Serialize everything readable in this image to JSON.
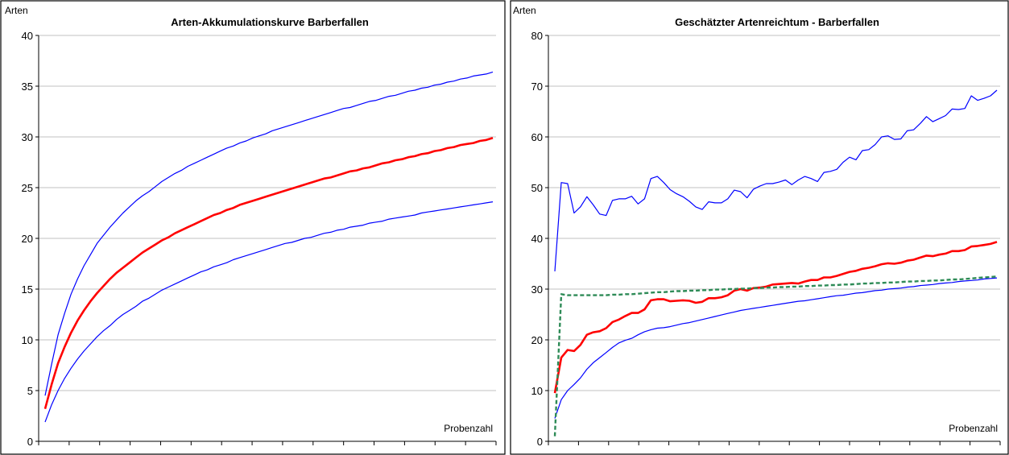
{
  "chart_data": [
    {
      "type": "line",
      "title": "Arten-Akkumulationskurve Barberfallen",
      "ylabel": "Arten",
      "xlabel": "Probenzahl",
      "ylim": [
        0,
        40
      ],
      "yticks": [
        0,
        5,
        10,
        15,
        20,
        25,
        30,
        35,
        40
      ],
      "x_count": 70,
      "grid": true,
      "series": [
        {
          "color": "#0000ff",
          "style": "solid",
          "width": 1.2,
          "values": [
            4.5,
            7.6,
            10.5,
            12.6,
            14.5,
            16.0,
            17.3,
            18.4,
            19.5,
            20.3,
            21.1,
            21.8,
            22.5,
            23.1,
            23.7,
            24.2,
            24.6,
            25.1,
            25.6,
            26.0,
            26.4,
            26.7,
            27.1,
            27.4,
            27.7,
            28.0,
            28.3,
            28.6,
            28.9,
            29.1,
            29.4,
            29.6,
            29.9,
            30.1,
            30.3,
            30.6,
            30.8,
            31.0,
            31.2,
            31.4,
            31.6,
            31.8,
            32.0,
            32.2,
            32.4,
            32.6,
            32.8,
            32.9,
            33.1,
            33.3,
            33.5,
            33.6,
            33.8,
            34.0,
            34.1,
            34.3,
            34.5,
            34.6,
            34.8,
            34.9,
            35.1,
            35.2,
            35.4,
            35.5,
            35.7,
            35.8,
            36.0,
            36.1,
            36.2,
            36.4
          ]
        },
        {
          "color": "#ff0000",
          "style": "solid",
          "width": 2.6,
          "values": [
            3.2,
            5.6,
            7.7,
            9.3,
            10.7,
            11.9,
            12.9,
            13.8,
            14.6,
            15.3,
            16.0,
            16.6,
            17.1,
            17.6,
            18.1,
            18.6,
            19.0,
            19.4,
            19.8,
            20.1,
            20.5,
            20.8,
            21.1,
            21.4,
            21.7,
            22.0,
            22.3,
            22.5,
            22.8,
            23.0,
            23.3,
            23.5,
            23.7,
            23.9,
            24.1,
            24.3,
            24.5,
            24.7,
            24.9,
            25.1,
            25.3,
            25.5,
            25.7,
            25.9,
            26.0,
            26.2,
            26.4,
            26.6,
            26.7,
            26.9,
            27.0,
            27.2,
            27.4,
            27.5,
            27.7,
            27.8,
            28.0,
            28.1,
            28.3,
            28.4,
            28.6,
            28.7,
            28.9,
            29.0,
            29.2,
            29.3,
            29.4,
            29.6,
            29.7,
            29.9
          ]
        },
        {
          "color": "#0000ff",
          "style": "solid",
          "width": 1.2,
          "values": [
            1.9,
            3.6,
            5.0,
            6.2,
            7.2,
            8.1,
            8.9,
            9.6,
            10.3,
            10.9,
            11.4,
            12.0,
            12.5,
            12.9,
            13.3,
            13.8,
            14.1,
            14.5,
            14.9,
            15.2,
            15.5,
            15.8,
            16.1,
            16.4,
            16.7,
            16.9,
            17.2,
            17.4,
            17.6,
            17.9,
            18.1,
            18.3,
            18.5,
            18.7,
            18.9,
            19.1,
            19.3,
            19.5,
            19.6,
            19.8,
            20.0,
            20.1,
            20.3,
            20.5,
            20.6,
            20.8,
            20.9,
            21.1,
            21.2,
            21.3,
            21.5,
            21.6,
            21.7,
            21.9,
            22.0,
            22.1,
            22.2,
            22.3,
            22.5,
            22.6,
            22.7,
            22.8,
            22.9,
            23.0,
            23.1,
            23.2,
            23.3,
            23.4,
            23.5,
            23.6
          ]
        }
      ]
    },
    {
      "type": "line",
      "title": "Geschätzter Artenreichtum - Barberfallen",
      "ylabel": "Arten",
      "xlabel": "Probenzahl",
      "ylim": [
        0,
        80
      ],
      "yticks": [
        0,
        10,
        20,
        30,
        40,
        50,
        60,
        70,
        80
      ],
      "x_count": 70,
      "grid": true,
      "series": [
        {
          "color": "#0000ff",
          "style": "solid",
          "width": 1.2,
          "values": [
            33.5,
            51.0,
            50.8,
            45.0,
            46.2,
            48.2,
            46.6,
            44.8,
            44.5,
            47.5,
            47.8,
            47.8,
            48.3,
            46.8,
            47.8,
            51.8,
            52.2,
            51.0,
            49.6,
            48.8,
            48.2,
            47.3,
            46.2,
            45.7,
            47.2,
            47.0,
            47.0,
            47.8,
            49.5,
            49.2,
            48.0,
            49.7,
            50.3,
            50.8,
            50.8,
            51.1,
            51.5,
            50.6,
            51.5,
            52.2,
            51.8,
            51.2,
            53.0,
            53.2,
            53.6,
            55.0,
            56.0,
            55.5,
            57.3,
            57.5,
            58.5,
            60.0,
            60.2,
            59.5,
            59.6,
            61.2,
            61.4,
            62.6,
            64.0,
            63.0,
            63.6,
            64.2,
            65.5,
            65.4,
            65.6,
            68.1,
            67.2,
            67.6,
            68.1,
            69.2
          ]
        },
        {
          "color": "#ff0000",
          "style": "solid",
          "width": 2.6,
          "values": [
            9.5,
            16.5,
            18.0,
            17.8,
            19.0,
            21.0,
            21.5,
            21.7,
            22.3,
            23.5,
            24.0,
            24.7,
            25.3,
            25.3,
            26.0,
            27.8,
            28.0,
            28.0,
            27.6,
            27.7,
            27.8,
            27.7,
            27.3,
            27.5,
            28.2,
            28.2,
            28.4,
            28.8,
            29.7,
            30.0,
            29.7,
            30.2,
            30.3,
            30.5,
            30.9,
            31.0,
            31.1,
            31.2,
            31.1,
            31.5,
            31.8,
            31.8,
            32.3,
            32.3,
            32.6,
            33.0,
            33.4,
            33.6,
            34.0,
            34.2,
            34.5,
            34.9,
            35.1,
            35.0,
            35.2,
            35.6,
            35.8,
            36.2,
            36.6,
            36.5,
            36.8,
            37.0,
            37.5,
            37.5,
            37.7,
            38.4,
            38.5,
            38.7,
            38.9,
            39.3
          ]
        },
        {
          "color": "#0000ff",
          "style": "solid",
          "width": 1.2,
          "values": [
            4.5,
            8.2,
            10.0,
            11.2,
            12.5,
            14.2,
            15.5,
            16.5,
            17.5,
            18.5,
            19.4,
            19.9,
            20.3,
            21.0,
            21.6,
            22.0,
            22.3,
            22.4,
            22.6,
            22.9,
            23.2,
            23.4,
            23.7,
            24.0,
            24.3,
            24.6,
            24.9,
            25.2,
            25.5,
            25.8,
            26.0,
            26.2,
            26.4,
            26.6,
            26.8,
            27.0,
            27.2,
            27.4,
            27.6,
            27.7,
            27.9,
            28.1,
            28.3,
            28.5,
            28.7,
            28.8,
            29.0,
            29.2,
            29.3,
            29.5,
            29.7,
            29.8,
            30.0,
            30.1,
            30.2,
            30.4,
            30.5,
            30.7,
            30.8,
            30.9,
            31.1,
            31.2,
            31.3,
            31.5,
            31.6,
            31.7,
            31.8,
            32.0,
            32.1,
            32.2
          ]
        },
        {
          "color": "#2e8b57",
          "style": "dashed",
          "width": 2.4,
          "values": [
            1.0,
            29.0,
            28.8,
            28.8,
            28.8,
            28.8,
            28.8,
            28.8,
            28.8,
            28.9,
            28.9,
            29.0,
            29.0,
            29.1,
            29.2,
            29.3,
            29.4,
            29.4,
            29.5,
            29.6,
            29.6,
            29.7,
            29.7,
            29.8,
            29.8,
            29.9,
            29.9,
            30.0,
            30.0,
            30.1,
            30.1,
            30.2,
            30.2,
            30.3,
            30.3,
            30.4,
            30.4,
            30.5,
            30.5,
            30.6,
            30.6,
            30.7,
            30.7,
            30.8,
            30.8,
            30.9,
            30.9,
            31.0,
            31.1,
            31.1,
            31.2,
            31.2,
            31.3,
            31.3,
            31.4,
            31.5,
            31.5,
            31.6,
            31.6,
            31.7,
            31.7,
            31.8,
            31.9,
            31.9,
            32.0,
            32.1,
            32.2,
            32.3,
            32.4,
            32.5
          ]
        }
      ]
    }
  ]
}
